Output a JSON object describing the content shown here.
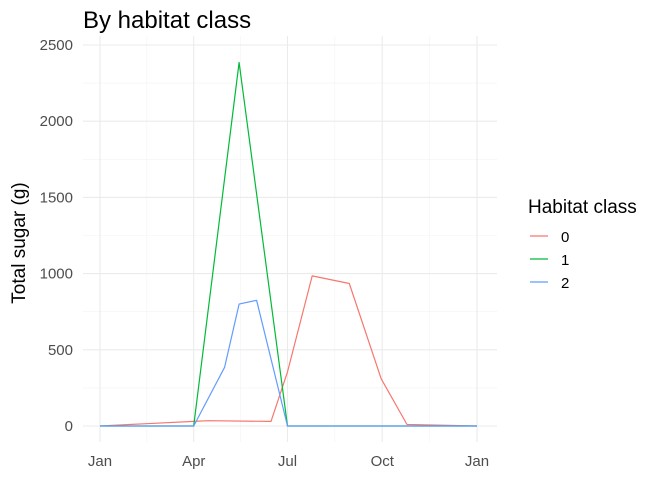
{
  "chart_data": {
    "type": "line",
    "title": "By habitat class",
    "xlabel": "",
    "ylabel": "Total sugar (g)",
    "x_ticks": [
      "Jan",
      "Apr",
      "Jul",
      "Oct",
      "Jan"
    ],
    "x_tick_values": [
      "2000-01-01",
      "2000-04-01",
      "2000-07-01",
      "2000-10-01",
      "2001-01-01"
    ],
    "xlim": [
      "2000-01-01",
      "2001-01-01"
    ],
    "y_ticks": [
      0,
      500,
      1000,
      1500,
      2000,
      2500
    ],
    "ylim": [
      0,
      2500
    ],
    "grid": true,
    "legend": {
      "title": "Habitat class",
      "position": "right"
    },
    "series": [
      {
        "name": "0",
        "color": "#F8766D",
        "points": [
          {
            "x": "2000-01-01",
            "y": 0
          },
          {
            "x": "2000-02-15",
            "y": 15
          },
          {
            "x": "2000-04-01",
            "y": 30
          },
          {
            "x": "2000-04-15",
            "y": 35
          },
          {
            "x": "2000-06-15",
            "y": 30
          },
          {
            "x": "2000-07-01",
            "y": 355
          },
          {
            "x": "2000-07-25",
            "y": 985
          },
          {
            "x": "2000-08-30",
            "y": 935
          },
          {
            "x": "2000-09-30",
            "y": 310
          },
          {
            "x": "2000-10-25",
            "y": 10
          },
          {
            "x": "2001-01-01",
            "y": 0
          }
        ]
      },
      {
        "name": "1",
        "color": "#00BA38",
        "points": [
          {
            "x": "2000-01-01",
            "y": 0
          },
          {
            "x": "2000-04-01",
            "y": 0
          },
          {
            "x": "2000-05-15",
            "y": 2385
          },
          {
            "x": "2000-07-01",
            "y": 0
          },
          {
            "x": "2001-01-01",
            "y": 0
          }
        ]
      },
      {
        "name": "2",
        "color": "#619CFF",
        "points": [
          {
            "x": "2000-01-01",
            "y": 0
          },
          {
            "x": "2000-04-01",
            "y": 0
          },
          {
            "x": "2000-05-01",
            "y": 385
          },
          {
            "x": "2000-05-15",
            "y": 800
          },
          {
            "x": "2000-06-01",
            "y": 825
          },
          {
            "x": "2000-07-01",
            "y": 0
          },
          {
            "x": "2001-01-01",
            "y": 0
          }
        ]
      }
    ]
  }
}
